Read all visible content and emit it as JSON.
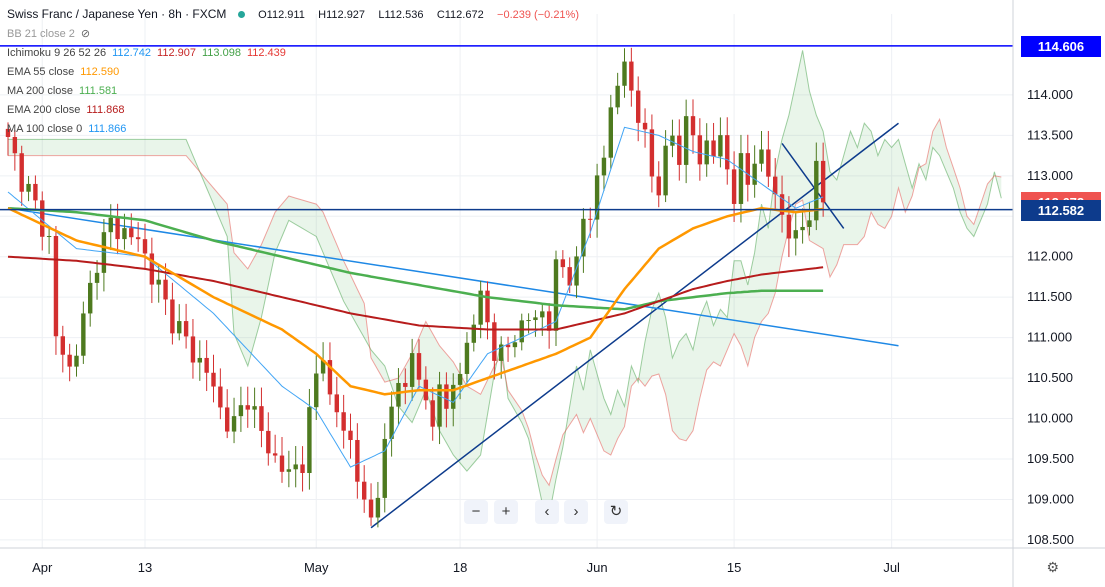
{
  "header": {
    "symbol": "Swiss Franc / Japanese Yen · 8h · FXCM",
    "open": "O112.911",
    "high": "H112.927",
    "low": "L112.536",
    "close": "C112.672",
    "change": "−0.239 (−0.21%)"
  },
  "indicators": [
    {
      "label": "BB 21 close 2",
      "values": [],
      "colors": []
    },
    {
      "label": "Ichimoku 9 26 52 26",
      "values": [
        "112.742",
        "112.907",
        "113.098",
        "112.439"
      ],
      "colors": [
        "#2196f3",
        "#c62828",
        "#43a047",
        "#e53935"
      ]
    },
    {
      "label": "EMA 55 close",
      "values": [
        "112.590"
      ],
      "colors": [
        "#ff9800"
      ]
    },
    {
      "label": "MA 200 close",
      "values": [
        "111.581"
      ],
      "colors": [
        "#4caf50"
      ]
    },
    {
      "label": "EMA 200 close",
      "values": [
        "111.868"
      ],
      "colors": [
        "#b71c1c"
      ]
    },
    {
      "label": "MA 100 close 0",
      "values": [
        "111.866"
      ],
      "colors": [
        "#2196f3"
      ]
    }
  ],
  "price_tags": [
    {
      "text": "114.606",
      "color": "#0000ff",
      "price": 114.606
    },
    {
      "text": "112.672",
      "color": "#ef5350",
      "price": 112.672
    },
    {
      "text": "112.582",
      "color": "#0d3b8c",
      "price": 112.582
    }
  ],
  "nav_buttons": [
    {
      "name": "zoom-out-button",
      "glyph": "−"
    },
    {
      "name": "zoom-in-button",
      "glyph": "+"
    },
    {
      "name": "scroll-left-button",
      "glyph": "‹"
    },
    {
      "name": "scroll-right-button",
      "glyph": "›"
    },
    {
      "name": "reset-chart-button",
      "glyph": "↻"
    }
  ],
  "chart_data": {
    "type": "candlestick",
    "title": "Swiss Franc / Japanese Yen · 8h · FXCM",
    "ylim": [
      108.4,
      115.0
    ],
    "y_ticks": [
      108.5,
      109.0,
      109.5,
      110.0,
      110.5,
      111.0,
      111.5,
      112.0,
      112.5,
      113.0,
      113.5,
      114.0
    ],
    "y_tick_labels": [
      "108.500",
      "109.000",
      "109.500",
      "110.000",
      "110.500",
      "111.000",
      "111.500",
      "112.000",
      "112.500",
      "113.000",
      "113.500",
      "114.000"
    ],
    "x_ticks": [
      {
        "label": "Apr",
        "bar": 5
      },
      {
        "label": "13",
        "bar": 20
      },
      {
        "label": "May",
        "bar": 45
      },
      {
        "label": "18",
        "bar": 66
      },
      {
        "label": "Jun",
        "bar": 86
      },
      {
        "label": "15",
        "bar": 106
      },
      {
        "label": "Jul",
        "bar": 129
      }
    ],
    "bar_count": 142,
    "close_anchors": [
      [
        0,
        113.4
      ],
      [
        2,
        113.0
      ],
      [
        4,
        112.6
      ],
      [
        6,
        112.2
      ],
      [
        7,
        111.0
      ],
      [
        9,
        110.6
      ],
      [
        11,
        111.2
      ],
      [
        13,
        112.0
      ],
      [
        15,
        112.4
      ],
      [
        17,
        112.3
      ],
      [
        19,
        112.2
      ],
      [
        21,
        111.8
      ],
      [
        23,
        111.4
      ],
      [
        25,
        111.1
      ],
      [
        27,
        110.8
      ],
      [
        29,
        110.6
      ],
      [
        31,
        110.1
      ],
      [
        33,
        109.9
      ],
      [
        35,
        110.3
      ],
      [
        37,
        109.8
      ],
      [
        39,
        109.5
      ],
      [
        41,
        109.3
      ],
      [
        43,
        109.5
      ],
      [
        45,
        110.5
      ],
      [
        46,
        110.9
      ],
      [
        47,
        110.2
      ],
      [
        49,
        109.9
      ],
      [
        50,
        109.7
      ],
      [
        51,
        109.3
      ],
      [
        52,
        108.9
      ],
      [
        53,
        108.75
      ],
      [
        54,
        109.2
      ],
      [
        55,
        109.6
      ],
      [
        56,
        110.1
      ],
      [
        57,
        110.6
      ],
      [
        58,
        110.3
      ],
      [
        59,
        110.8
      ],
      [
        60,
        110.5
      ],
      [
        61,
        110.2
      ],
      [
        62,
        110.0
      ],
      [
        63,
        110.3
      ],
      [
        64,
        110.1
      ],
      [
        65,
        110.6
      ],
      [
        66,
        110.4
      ],
      [
        67,
        110.9
      ],
      [
        68,
        111.3
      ],
      [
        69,
        111.5
      ],
      [
        70,
        111.2
      ],
      [
        71,
        110.7
      ],
      [
        72,
        110.9
      ],
      [
        73,
        111.0
      ],
      [
        74,
        110.8
      ],
      [
        75,
        111.2
      ],
      [
        76,
        111.4
      ],
      [
        77,
        111.1
      ],
      [
        78,
        111.3
      ],
      [
        79,
        111.2
      ],
      [
        80,
        111.9
      ],
      [
        81,
        111.9
      ],
      [
        82,
        111.6
      ],
      [
        83,
        112.0
      ],
      [
        84,
        112.6
      ],
      [
        85,
        112.3
      ],
      [
        86,
        113.0
      ],
      [
        87,
        113.4
      ],
      [
        88,
        113.7
      ],
      [
        89,
        114.1
      ],
      [
        90,
        114.5
      ],
      [
        91,
        114.0
      ],
      [
        92,
        113.7
      ],
      [
        93,
        113.5
      ],
      [
        94,
        113.0
      ],
      [
        95,
        112.9
      ],
      [
        96,
        113.2
      ],
      [
        97,
        113.5
      ],
      [
        98,
        113.3
      ],
      [
        99,
        113.6
      ],
      [
        100,
        113.5
      ],
      [
        101,
        113.2
      ],
      [
        102,
        113.4
      ],
      [
        103,
        113.3
      ],
      [
        104,
        113.4
      ],
      [
        105,
        113.1
      ],
      [
        106,
        112.8
      ],
      [
        107,
        113.1
      ],
      [
        108,
        112.9
      ],
      [
        109,
        113.3
      ],
      [
        110,
        113.2
      ],
      [
        111,
        113.0
      ],
      [
        112,
        112.8
      ],
      [
        113,
        112.5
      ],
      [
        114,
        112.3
      ],
      [
        115,
        112.2
      ],
      [
        116,
        112.4
      ],
      [
        117,
        112.6
      ],
      [
        118,
        113.0
      ],
      [
        119,
        112.672
      ]
    ],
    "ema55": [
      [
        0,
        112.6
      ],
      [
        10,
        112.2
      ],
      [
        20,
        112.0
      ],
      [
        30,
        111.5
      ],
      [
        40,
        111.1
      ],
      [
        45,
        110.8
      ],
      [
        50,
        110.4
      ],
      [
        55,
        110.3
      ],
      [
        60,
        110.35
      ],
      [
        65,
        110.35
      ],
      [
        70,
        110.5
      ],
      [
        75,
        110.65
      ],
      [
        80,
        110.8
      ],
      [
        85,
        111.0
      ],
      [
        90,
        111.6
      ],
      [
        95,
        112.1
      ],
      [
        100,
        112.35
      ],
      [
        105,
        112.5
      ],
      [
        110,
        112.6
      ],
      [
        115,
        112.55
      ],
      [
        119,
        112.59
      ]
    ],
    "ma200": [
      [
        0,
        112.6
      ],
      [
        10,
        112.55
      ],
      [
        20,
        112.45
      ],
      [
        30,
        112.2
      ],
      [
        40,
        112.0
      ],
      [
        50,
        111.8
      ],
      [
        60,
        111.65
      ],
      [
        70,
        111.5
      ],
      [
        80,
        111.4
      ],
      [
        90,
        111.35
      ],
      [
        95,
        111.45
      ],
      [
        100,
        111.5
      ],
      [
        105,
        111.55
      ],
      [
        110,
        111.58
      ],
      [
        119,
        111.58
      ]
    ],
    "ema200": [
      [
        0,
        112.0
      ],
      [
        10,
        111.95
      ],
      [
        20,
        111.85
      ],
      [
        30,
        111.7
      ],
      [
        40,
        111.5
      ],
      [
        50,
        111.3
      ],
      [
        60,
        111.15
      ],
      [
        70,
        111.1
      ],
      [
        80,
        111.1
      ],
      [
        90,
        111.3
      ],
      [
        95,
        111.45
      ],
      [
        100,
        111.6
      ],
      [
        105,
        111.7
      ],
      [
        110,
        111.78
      ],
      [
        119,
        111.87
      ]
    ],
    "ichimoku_tenkan": [
      [
        0,
        112.8
      ],
      [
        10,
        112.1
      ],
      [
        20,
        112.0
      ],
      [
        30,
        111.3
      ],
      [
        40,
        110.4
      ],
      [
        45,
        110.1
      ],
      [
        50,
        109.4
      ],
      [
        55,
        109.6
      ],
      [
        60,
        110.4
      ],
      [
        65,
        110.2
      ],
      [
        70,
        110.8
      ],
      [
        75,
        111.0
      ],
      [
        80,
        111.2
      ],
      [
        85,
        112.3
      ],
      [
        90,
        113.6
      ],
      [
        95,
        113.5
      ],
      [
        100,
        113.3
      ],
      [
        105,
        113.2
      ],
      [
        110,
        112.9
      ],
      [
        115,
        112.6
      ],
      [
        119,
        112.74
      ]
    ]
  }
}
